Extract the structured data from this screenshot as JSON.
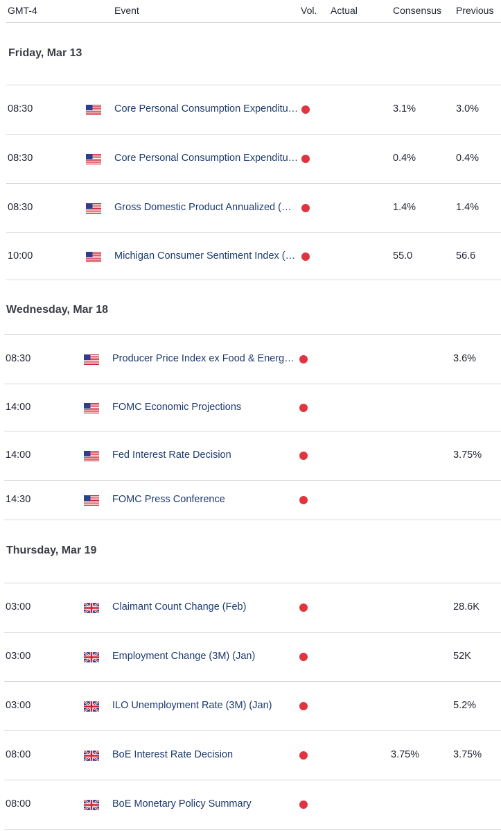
{
  "header": {
    "timezone": "GMT-4",
    "event": "Event",
    "vol": "Vol.",
    "actual": "Actual",
    "consensus": "Consensus",
    "previous": "Previous"
  },
  "colors": {
    "volatility_high": "#e0343f",
    "event_link": "#1c3a6e"
  },
  "sections": [
    {
      "day": "Friday, Mar 13",
      "rows": [
        {
          "time": "08:30",
          "flag": "us-flag-icon",
          "event": "Core Personal Consumption Expenditure (YoY)",
          "actual": "",
          "consensus": "3.1%",
          "previous": "3.0%"
        },
        {
          "time": "08:30",
          "flag": "us-flag-icon",
          "event": "Core Personal Consumption Expenditure (MoM)",
          "actual": "",
          "consensus": "0.4%",
          "previous": "0.4%"
        },
        {
          "time": "08:30",
          "flag": "us-flag-icon",
          "event": "Gross Domestic Product Annualized (QoQ)",
          "actual": "",
          "consensus": "1.4%",
          "previous": "1.4%"
        },
        {
          "time": "10:00",
          "flag": "us-flag-icon",
          "event": "Michigan Consumer Sentiment Index (Mar)",
          "actual": "",
          "consensus": "55.0",
          "previous": "56.6"
        }
      ]
    },
    {
      "day": "Wednesday, Mar 18",
      "rows": [
        {
          "time": "08:30",
          "flag": "us-flag-icon",
          "event": "Producer Price Index ex Food & Energy (YoY)",
          "actual": "",
          "consensus": "",
          "previous": "3.6%"
        },
        {
          "time": "14:00",
          "flag": "us-flag-icon",
          "event": "FOMC Economic Projections",
          "actual": "",
          "consensus": "",
          "previous": ""
        },
        {
          "time": "14:00",
          "flag": "us-flag-icon",
          "event": "Fed Interest Rate Decision",
          "actual": "",
          "consensus": "",
          "previous": "3.75%"
        },
        {
          "time": "14:30",
          "flag": "us-flag-icon",
          "event": "FOMC Press Conference",
          "actual": "",
          "consensus": "",
          "previous": ""
        }
      ]
    },
    {
      "day": "Thursday, Mar 19",
      "rows": [
        {
          "time": "03:00",
          "flag": "uk-flag-icon",
          "event": "Claimant Count Change (Feb)",
          "actual": "",
          "consensus": "",
          "previous": "28.6K"
        },
        {
          "time": "03:00",
          "flag": "uk-flag-icon",
          "event": "Employment Change (3M) (Jan)",
          "actual": "",
          "consensus": "",
          "previous": "52K"
        },
        {
          "time": "03:00",
          "flag": "uk-flag-icon",
          "event": "ILO Unemployment Rate (3M) (Jan)",
          "actual": "",
          "consensus": "",
          "previous": "5.2%"
        },
        {
          "time": "08:00",
          "flag": "uk-flag-icon",
          "event": "BoE Interest Rate Decision",
          "actual": "",
          "consensus": "3.75%",
          "previous": "3.75%"
        },
        {
          "time": "08:00",
          "flag": "uk-flag-icon",
          "event": "BoE Monetary Policy Summary",
          "actual": "",
          "consensus": "",
          "previous": ""
        }
      ]
    }
  ]
}
